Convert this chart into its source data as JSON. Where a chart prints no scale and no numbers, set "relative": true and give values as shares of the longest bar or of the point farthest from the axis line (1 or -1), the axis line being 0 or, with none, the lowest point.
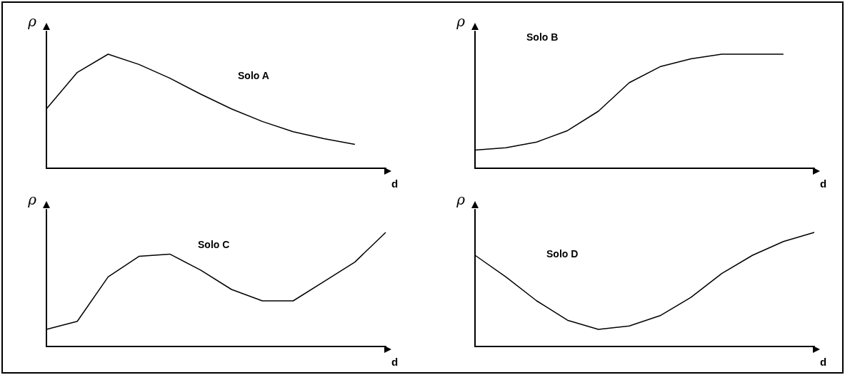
{
  "chart_data": [
    {
      "type": "line",
      "title": "Solo A",
      "ylabel": "ρ",
      "xlabel": "d",
      "relative": true,
      "marker": "none",
      "line_style": "solid",
      "color": "#000000",
      "categories": [
        null,
        null,
        null,
        null,
        null,
        null,
        null,
        null,
        null,
        null,
        null,
        null
      ],
      "values": [
        0.52,
        0.84,
        1,
        0.91,
        0.79,
        0.65,
        0.52,
        0.41,
        0.32,
        0.26,
        0.21,
        null
      ]
    },
    {
      "type": "line",
      "title": "Solo B",
      "ylabel": "ρ",
      "xlabel": "d",
      "relative": true,
      "marker": "none",
      "line_style": "solid",
      "color": "#000000",
      "categories": [
        null,
        null,
        null,
        null,
        null,
        null,
        null,
        null,
        null,
        null,
        null,
        null
      ],
      "values": [
        0.16,
        0.18,
        0.23,
        0.33,
        0.5,
        0.75,
        0.89,
        0.96,
        1,
        1,
        1,
        null
      ]
    },
    {
      "type": "line",
      "title": "Solo C",
      "ylabel": "ρ",
      "xlabel": "d",
      "relative": true,
      "marker": "none",
      "line_style": "solid",
      "color": "#000000",
      "categories": [
        null,
        null,
        null,
        null,
        null,
        null,
        null,
        null,
        null,
        null,
        null,
        null
      ],
      "values": [
        0.15,
        0.22,
        0.61,
        0.79,
        0.81,
        0.67,
        0.5,
        0.4,
        0.4,
        0.57,
        0.74,
        1
      ]
    },
    {
      "type": "line",
      "title": "Solo D",
      "ylabel": "ρ",
      "xlabel": "d",
      "relative": true,
      "marker": "none",
      "line_style": "solid",
      "color": "#000000",
      "categories": [
        null,
        null,
        null,
        null,
        null,
        null,
        null,
        null,
        null,
        null,
        null,
        null
      ],
      "values": [
        0.8,
        0.61,
        0.4,
        0.23,
        0.15,
        0.18,
        0.27,
        0.43,
        0.64,
        0.8,
        0.92,
        1
      ]
    }
  ]
}
